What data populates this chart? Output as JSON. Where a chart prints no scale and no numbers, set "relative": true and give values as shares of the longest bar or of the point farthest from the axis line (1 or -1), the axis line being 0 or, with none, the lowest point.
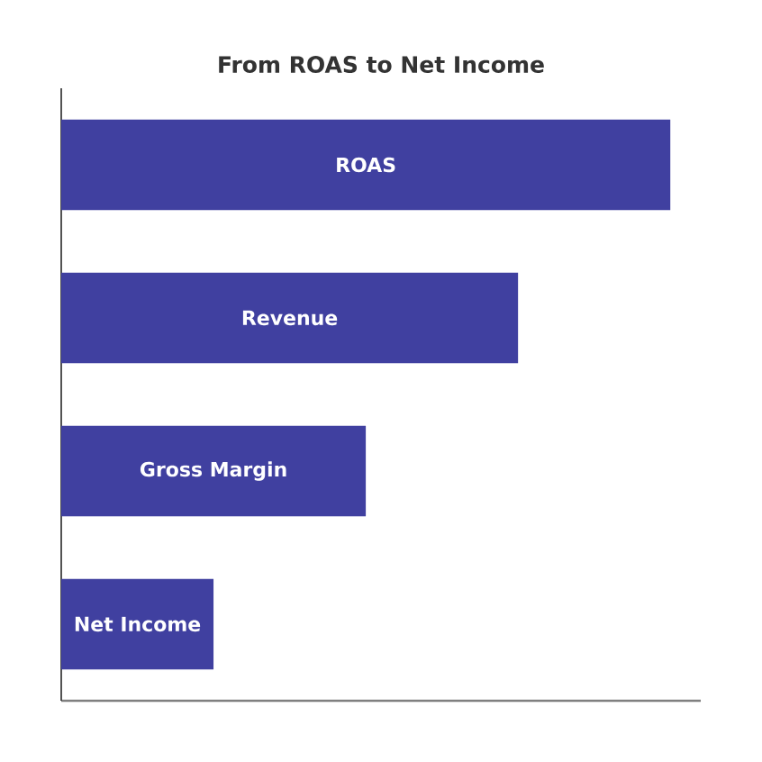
{
  "chart_data": {
    "type": "bar",
    "orientation": "horizontal",
    "relative": true,
    "title": "From ROAS to Net Income",
    "categories": [
      "ROAS",
      "Revenue",
      "Gross Margin",
      "Net Income"
    ],
    "values": [
      1,
      0.75,
      0.5,
      0.25
    ],
    "color": "#4040a0"
  }
}
